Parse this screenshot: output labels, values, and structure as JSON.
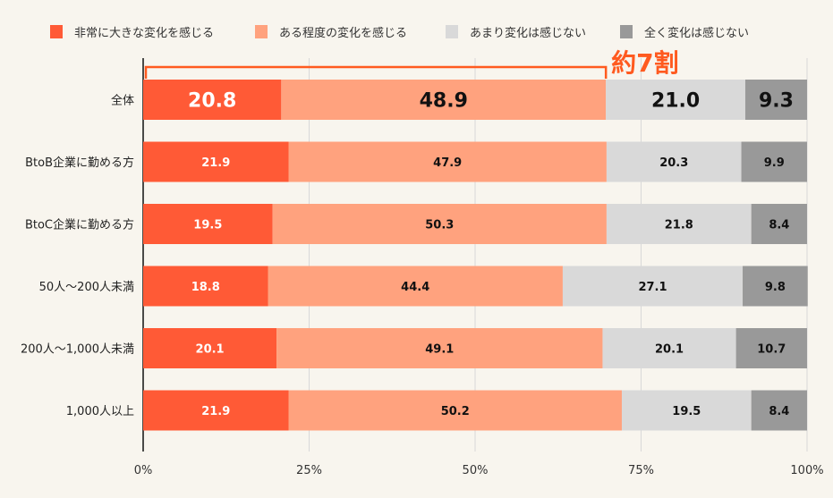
{
  "chart_data": {
    "type": "bar",
    "orientation": "horizontal",
    "stacked": true,
    "categories": [
      "全体",
      "BtoB企業に勤める方",
      "BtoC企業に勤める方",
      "50人～200人未満",
      "200人～1,000人未満",
      "1,000人以上"
    ],
    "series": [
      {
        "name": "非常に大きな変化を感じる",
        "color": "#ff5a36",
        "values": [
          20.8,
          21.9,
          19.5,
          18.8,
          20.1,
          21.9
        ]
      },
      {
        "name": "ある程度の変化を感じる",
        "color": "#ffa27e",
        "values": [
          48.9,
          47.9,
          50.3,
          44.4,
          49.1,
          50.2
        ]
      },
      {
        "name": "あまり変化は感じない",
        "color": "#d9d9d9",
        "values": [
          21.0,
          20.3,
          21.8,
          27.1,
          20.1,
          19.5
        ]
      },
      {
        "name": "全く変化は感じない",
        "color": "#999999",
        "values": [
          9.3,
          9.9,
          8.4,
          9.8,
          10.7,
          8.4
        ]
      }
    ],
    "xlim": [
      0,
      100
    ],
    "xticks": [
      "0%",
      "25%",
      "50%",
      "75%",
      "100%"
    ],
    "grid": true,
    "legend_position": "top",
    "annotation": {
      "text": "約7割",
      "color": "#ff5a1f",
      "range": [
        0,
        69.7
      ]
    }
  }
}
